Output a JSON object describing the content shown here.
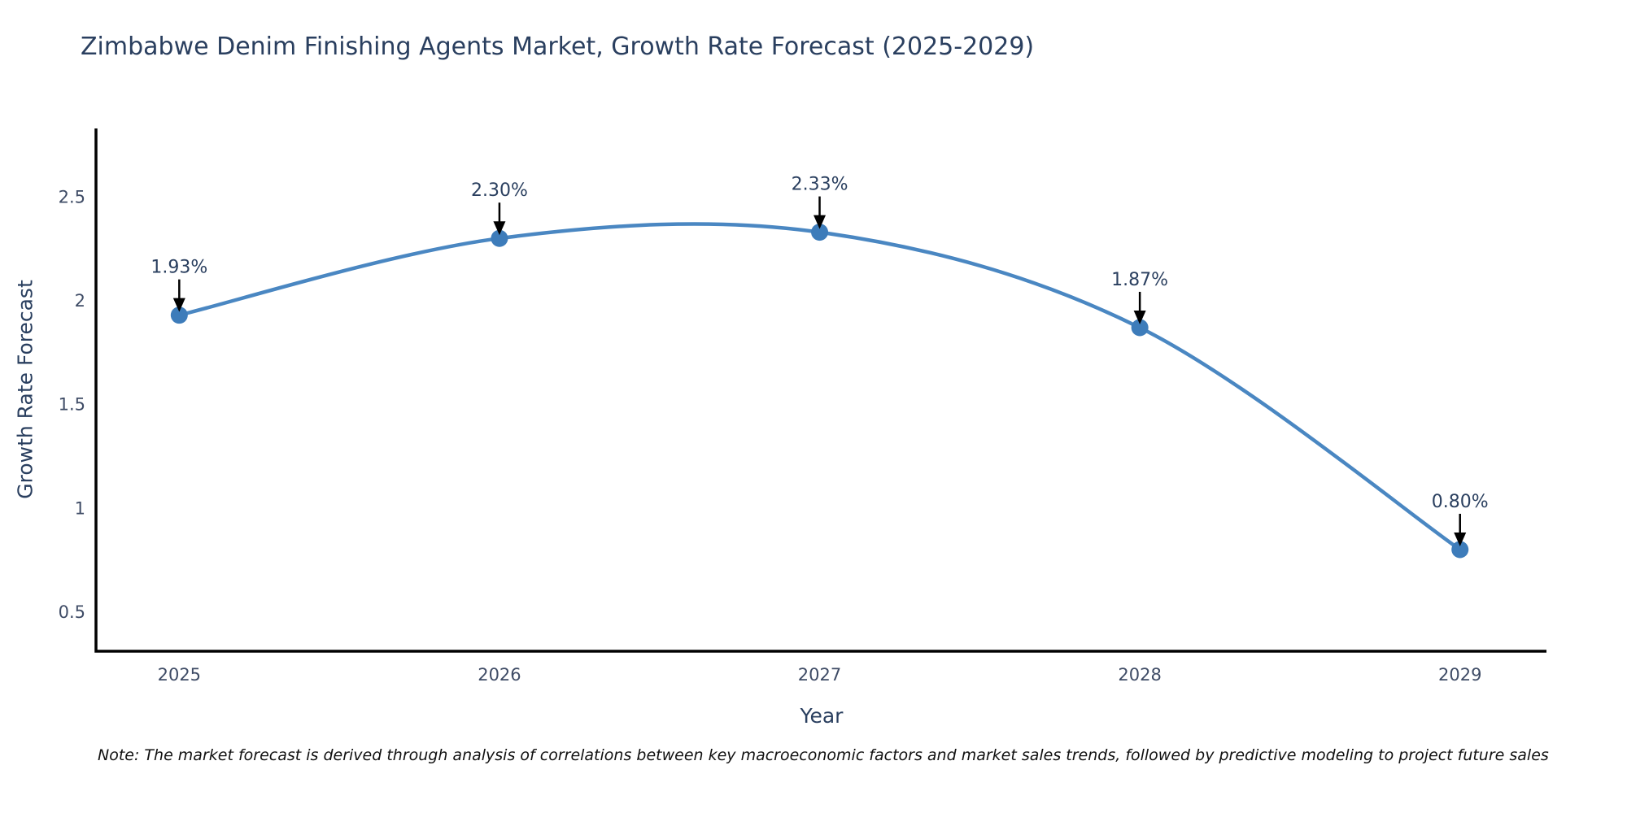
{
  "note": "Note: The market forecast is derived through analysis of correlations between key macroeconomic factors and market sales trends, followed by predictive modeling to project future sales",
  "chart_data": {
    "type": "line",
    "title": "Zimbabwe Denim Finishing Agents Market, Growth Rate Forecast (2025-2029)",
    "xlabel": "Year",
    "ylabel": "Growth Rate Forecast",
    "x": [
      2025,
      2026,
      2027,
      2028,
      2029
    ],
    "values": [
      1.93,
      2.3,
      2.33,
      1.87,
      0.8
    ],
    "point_labels": [
      "1.93%",
      "2.30%",
      "2.33%",
      "1.87%",
      "0.80%"
    ],
    "xtick_labels": [
      "2025",
      "2026",
      "2027",
      "2028",
      "2029"
    ],
    "xticks": [
      2025,
      2026,
      2027,
      2028,
      2029
    ],
    "ytick_labels": [
      "0.5",
      "1",
      "1.5",
      "2",
      "2.5"
    ],
    "yticks": [
      0.5,
      1.0,
      1.5,
      2.0,
      2.5
    ],
    "xlim": [
      2024.74,
      2029.27
    ],
    "ylim": [
      0.31,
      2.83
    ],
    "line_shape": "spline",
    "grid": false,
    "legend_position": "none",
    "colors": {
      "line": "#4a87c2",
      "marker": "#3d7cba",
      "axis_spine": "#000000",
      "arrow": "#000000",
      "title_text": "#2a3f5f",
      "tick_text": "#3f4c66",
      "annotation_text": "#2a3f5f",
      "note_text": "#111111",
      "background": "#ffffff"
    }
  }
}
